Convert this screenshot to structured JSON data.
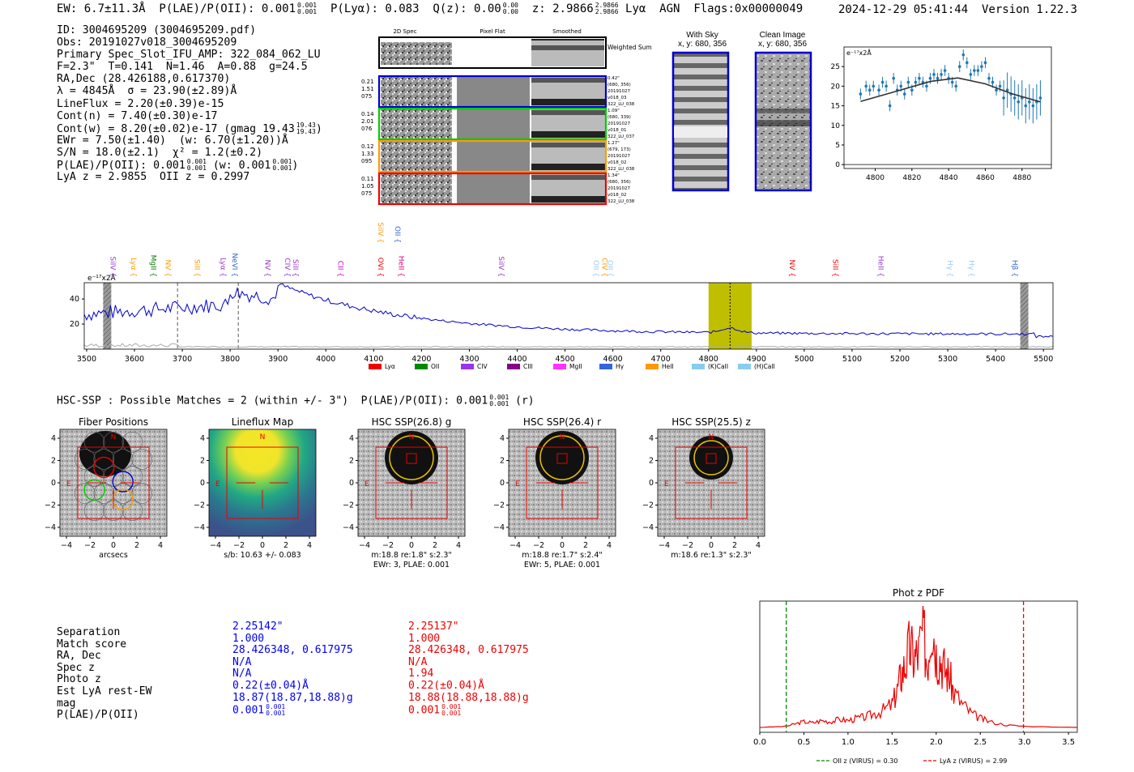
{
  "header": {
    "left": "EW: 6.7±11.3Å  P(LAE)/P(OII): 0.001",
    "plae_sup": "0.001",
    "plae_sub": "0.001",
    "plya": "P(Lyα): 0.083",
    "qz": "Q(z): 0.00",
    "qz_sup": "0.00",
    "qz_sub": "0.00",
    "z": "z: 2.9866",
    "z_sup": "2.9866",
    "z_sub": "2.9866",
    "tags": "Lyα  AGN  Flags:0x00000049",
    "right": "2024-12-29 05:41:44  Version 1.22.3"
  },
  "info": {
    "lines": [
      "ID: 3004695209 (3004695209.pdf)",
      "Obs: 20191027v018_3004695209",
      "Primary Spec_Slot_IFU_AMP: 322_084_062_LU",
      "F=2.3\"  T=0.141  N=1.46  A=0.88  g=24.5",
      "RA,Dec (28.426188,0.617370)",
      "λ = 4845Å  σ = 23.90(±2.89)Å",
      "LineFlux = 2.20(±0.39)e-15",
      "Cont(n) = 7.40(±0.30)e-17",
      "Cont(w) = 8.20(±0.02)e-17 (gmag 19.43",
      "EWr = 7.50(±1.40)  (w: 6.70(±1.20))Å",
      "S/N = 18.0(±2.1)  χ² = 1.2(±0.2)",
      "P(LAE)/P(OII): 0.001",
      "LyA z = 2.9855  OII z = 0.2997"
    ],
    "gmag_sup": "19.43",
    "gmag_sub": "19.43",
    "plae_sup": "0.001",
    "plae_sub": "0.001",
    "plae_w": "(w: 0.001",
    "plae_w_sup": "0.001",
    "plae_w_sub": "0.001"
  },
  "spec2d": {
    "col_titles": [
      "2D Spec",
      "Pixel Flat",
      "Smoothed"
    ],
    "weighted_sum": "Weighted Sum",
    "rows": [
      {
        "left": [
          "0.21",
          "1.51",
          "075"
        ],
        "right": [
          "0.42\"",
          "(680, 356)",
          "20191027",
          "v018_03",
          "322_LU_038"
        ],
        "color": "#0000cc"
      },
      {
        "left": [
          "0.14",
          "2.01",
          "076"
        ],
        "right": [
          "1.09\"",
          "(680, 339)",
          "20191027",
          "v018_01",
          "322_LU_037"
        ],
        "color": "#00cc00"
      },
      {
        "left": [
          "0.12",
          "1.33",
          "095"
        ],
        "right": [
          "1.27\"",
          "(679, 173)",
          "20191027",
          "v018_02",
          "322_LU_038"
        ],
        "color": "#ff9900"
      },
      {
        "left": [
          "0.11",
          "1.05",
          "075"
        ],
        "right": [
          "1.34\"",
          "(680, 356)",
          "20191027",
          "v018_02",
          "322_LU_038"
        ],
        "color": "#ee0000"
      }
    ]
  },
  "cutouts": {
    "with_sky": "With Sky",
    "with_sky_xy": "x, y: 680, 356",
    "clean": "Clean Image",
    "clean_xy": "x, y: 680, 356"
  },
  "zoom_chart": {
    "chart_data": {
      "type": "scatter",
      "unit_label": "e⁻¹⁷x2Å",
      "x": [
        4792,
        4795,
        4797,
        4799,
        4802,
        4804,
        4806,
        4808,
        4810,
        4812,
        4814,
        4816,
        4818,
        4820,
        4822,
        4824,
        4826,
        4828,
        4830,
        4832,
        4834,
        4836,
        4838,
        4840,
        4842,
        4844,
        4846,
        4848,
        4850,
        4852,
        4854,
        4856,
        4858,
        4860,
        4862,
        4864,
        4866,
        4868,
        4870,
        4872,
        4874,
        4876,
        4878,
        4880,
        4882,
        4884,
        4886,
        4888,
        4890
      ],
      "y": [
        18,
        20,
        19,
        20,
        19,
        21,
        20,
        15,
        22,
        19,
        20,
        18,
        21,
        19,
        21,
        22,
        21,
        20,
        22,
        23,
        22,
        23,
        24,
        22,
        21,
        20,
        25,
        28,
        26,
        23,
        24,
        24,
        25,
        26,
        22,
        21,
        19,
        20,
        17,
        19,
        18,
        17,
        16,
        17,
        15,
        16,
        15,
        16,
        17
      ],
      "fit": [
        [
          4792,
          16.1
        ],
        [
          4810,
          18.5
        ],
        [
          4830,
          21.2
        ],
        [
          4845,
          22.1
        ],
        [
          4860,
          20.6
        ],
        [
          4875,
          18
        ],
        [
          4890,
          16
        ]
      ],
      "xticks": [
        4800,
        4820,
        4840,
        4860,
        4880
      ],
      "yticks": [
        0,
        5,
        10,
        15,
        20,
        25
      ],
      "xlim": [
        4783,
        4896
      ],
      "ylim": [
        -1,
        30
      ]
    }
  },
  "spectrum": {
    "chart_data": {
      "type": "line",
      "unit_label": "e⁻¹⁷x2Å",
      "xticks": [
        3500,
        3600,
        3700,
        3800,
        3900,
        4000,
        4100,
        4200,
        4300,
        4400,
        4500,
        4600,
        4700,
        4800,
        4900,
        5000,
        5100,
        5200,
        5300,
        5400,
        5500
      ],
      "yticks": [
        20,
        40
      ],
      "xlim": [
        3495,
        5520
      ],
      "ylim": [
        0,
        53
      ],
      "highlight": [
        4800,
        4890
      ],
      "line_center": 4845,
      "dashed": [
        3690,
        3817
      ],
      "hatched": [
        3543,
        5460
      ],
      "lines": [
        {
          "name": "SiIV",
          "x": 3550,
          "c": "#9933cc",
          "pos": "high"
        },
        {
          "name": "Lyα",
          "x": 3593,
          "c": "#ff9900",
          "pos": "high"
        },
        {
          "name": "MgII",
          "x": 3635,
          "c": "#007700",
          "pos": "high"
        },
        {
          "name": "NV",
          "x": 3665,
          "c": "#ff9900",
          "pos": "high"
        },
        {
          "name": "SiII",
          "x": 3726,
          "c": "#ff9900",
          "pos": "high"
        },
        {
          "name": "Lyα",
          "x": 3780,
          "c": "#9933cc",
          "pos": "high"
        },
        {
          "name": "NeVI",
          "x": 3805,
          "c": "#3366cc",
          "pos": "high"
        },
        {
          "name": "NV",
          "x": 3873,
          "c": "#9933cc",
          "pos": "high"
        },
        {
          "name": "CIV",
          "x": 3915,
          "c": "#9933cc",
          "pos": "high"
        },
        {
          "name": "SiII",
          "x": 3932,
          "c": "#9933cc",
          "pos": "high"
        },
        {
          "name": "CII",
          "x": 4026,
          "c": "#cc00cc",
          "pos": "high"
        },
        {
          "name": "OVI",
          "x": 4110,
          "c": "#ee0000",
          "pos": "high"
        },
        {
          "name": "HeII",
          "x": 4153,
          "c": "#cc0077",
          "pos": "high"
        },
        {
          "name": "SiIV",
          "x": 4110,
          "c": "#ff9900",
          "pos": "top"
        },
        {
          "name": "OII",
          "x": 4145,
          "c": "#3366cc",
          "pos": "top"
        },
        {
          "name": "SiIV",
          "x": 4362,
          "c": "#9933cc",
          "pos": "high"
        },
        {
          "name": "OII",
          "x": 4560,
          "c": "#99ccee",
          "pos": "high"
        },
        {
          "name": "CIV",
          "x": 4578,
          "c": "#ff9900",
          "pos": "high"
        },
        {
          "name": "OII",
          "x": 4590,
          "c": "#99ccee",
          "pos": "high"
        },
        {
          "name": "NV",
          "x": 4970,
          "c": "#ee0000",
          "pos": "high"
        },
        {
          "name": "SiII",
          "x": 5060,
          "c": "#ee0000",
          "pos": "high"
        },
        {
          "name": "HeII",
          "x": 5155,
          "c": "#9933cc",
          "pos": "high"
        },
        {
          "name": "Hγ",
          "x": 5300,
          "c": "#99ccee",
          "pos": "high"
        },
        {
          "name": "Hγ",
          "x": 5345,
          "c": "#99ccee",
          "pos": "high"
        },
        {
          "name": "Hβ",
          "x": 5435,
          "c": "#3366cc",
          "pos": "high"
        }
      ],
      "legend": [
        {
          "name": "Lyα",
          "c": "#ee0000"
        },
        {
          "name": "OII",
          "c": "#008800"
        },
        {
          "name": "CIV",
          "c": "#9933ee"
        },
        {
          "name": "CIII",
          "c": "#880088"
        },
        {
          "name": "MgII",
          "c": "#ff33ff"
        },
        {
          "name": "Hγ",
          "c": "#3366dd"
        },
        {
          "name": "HeII",
          "c": "#ff9900"
        },
        {
          "name": "(K)CaII",
          "c": "#88ccee"
        },
        {
          "name": "(H)CaII",
          "c": "#88ccee"
        }
      ]
    }
  },
  "hsc": {
    "line": "HSC-SSP : Possible Matches = 2 (within +/- 3\")  P(LAE)/P(OII): 0.001",
    "sup": "0.001",
    "sub": "0.001",
    "tail": "(r)",
    "panels": [
      {
        "title": "Fiber Positions",
        "sub1": "arcsecs",
        "sub2": ""
      },
      {
        "title": "Lineflux Map",
        "sub1": "s/b: 10.63 +/- 0.083",
        "sub2": ""
      },
      {
        "title": "HSC SSP(26.8) g",
        "sub1": "m:18.8  re:1.8\"  s:2.3\"",
        "sub2": "EWr: 3, PLAE: 0.001"
      },
      {
        "title": "HSC SSP(26.4) r",
        "sub1": "m:18.8  re:1.7\"  s:2.4\"",
        "sub2": "EWr: 5, PLAE: 0.001"
      },
      {
        "title": "HSC SSP(25.5) z",
        "sub1": "m:18.6  re:1.3\"  s:2.3\"",
        "sub2": ""
      }
    ],
    "ticks": [
      "−4",
      "−2",
      "0",
      "2",
      "4"
    ],
    "yticks": [
      "4",
      "2",
      "0",
      "−2",
      "−4"
    ],
    "compass_n": "N",
    "compass_e": "E"
  },
  "match_table": {
    "labels": [
      "Separation",
      "Match score",
      "RA, Dec",
      "Spec z",
      "Photo z",
      "Est LyA rest-EW",
      "mag",
      "P(LAE)/P(OII)"
    ],
    "blue": [
      "2.25142\"",
      "1.000",
      "28.426348, 0.617975",
      "N/A",
      "N/A",
      "0.22(±0.04)Å",
      "18.87(18.87,18.88)g",
      "0.001"
    ],
    "red": [
      "2.25137\"",
      "1.000",
      "28.426348, 0.617975",
      "N/A",
      "1.94",
      "0.22(±0.04)Å",
      "18.88(18.88,18.88)g",
      "0.001"
    ],
    "blue_sup": "0.001",
    "blue_sub": "0.001",
    "red_sup": "0.001",
    "red_sub": "0.001",
    "blue_color": "#0000ee",
    "red_color": "#ee0000"
  },
  "photz": {
    "chart_data": {
      "type": "line",
      "title": "Phot z PDF",
      "xticks": [
        0.0,
        0.5,
        1.0,
        1.5,
        2.0,
        2.5,
        3.0,
        3.5
      ],
      "xlim": [
        0,
        3.6
      ],
      "oii_z": 0.3,
      "lya_z": 2.99,
      "legend": [
        "OII z (VIRUS) = 0.30",
        "LyA z (VIRUS) = 2.99"
      ],
      "x": [
        0,
        0.3,
        0.4,
        0.5,
        0.6,
        0.7,
        0.8,
        0.9,
        1.0,
        1.1,
        1.2,
        1.3,
        1.4,
        1.5,
        1.55,
        1.6,
        1.65,
        1.7,
        1.75,
        1.8,
        1.85,
        1.9,
        1.95,
        2.0,
        2.05,
        2.1,
        2.15,
        2.2,
        2.3,
        2.4,
        2.5,
        2.6,
        2.8,
        3.0,
        3.6
      ],
      "y": [
        0,
        0.01,
        0.03,
        0.05,
        0.04,
        0.06,
        0.05,
        0.07,
        0.06,
        0.08,
        0.09,
        0.12,
        0.15,
        0.2,
        0.3,
        0.45,
        0.55,
        0.7,
        0.6,
        0.65,
        0.85,
        0.55,
        1.0,
        0.65,
        0.6,
        0.5,
        0.45,
        0.3,
        0.2,
        0.12,
        0.08,
        0.05,
        0.02,
        0.01,
        0.0
      ]
    }
  }
}
